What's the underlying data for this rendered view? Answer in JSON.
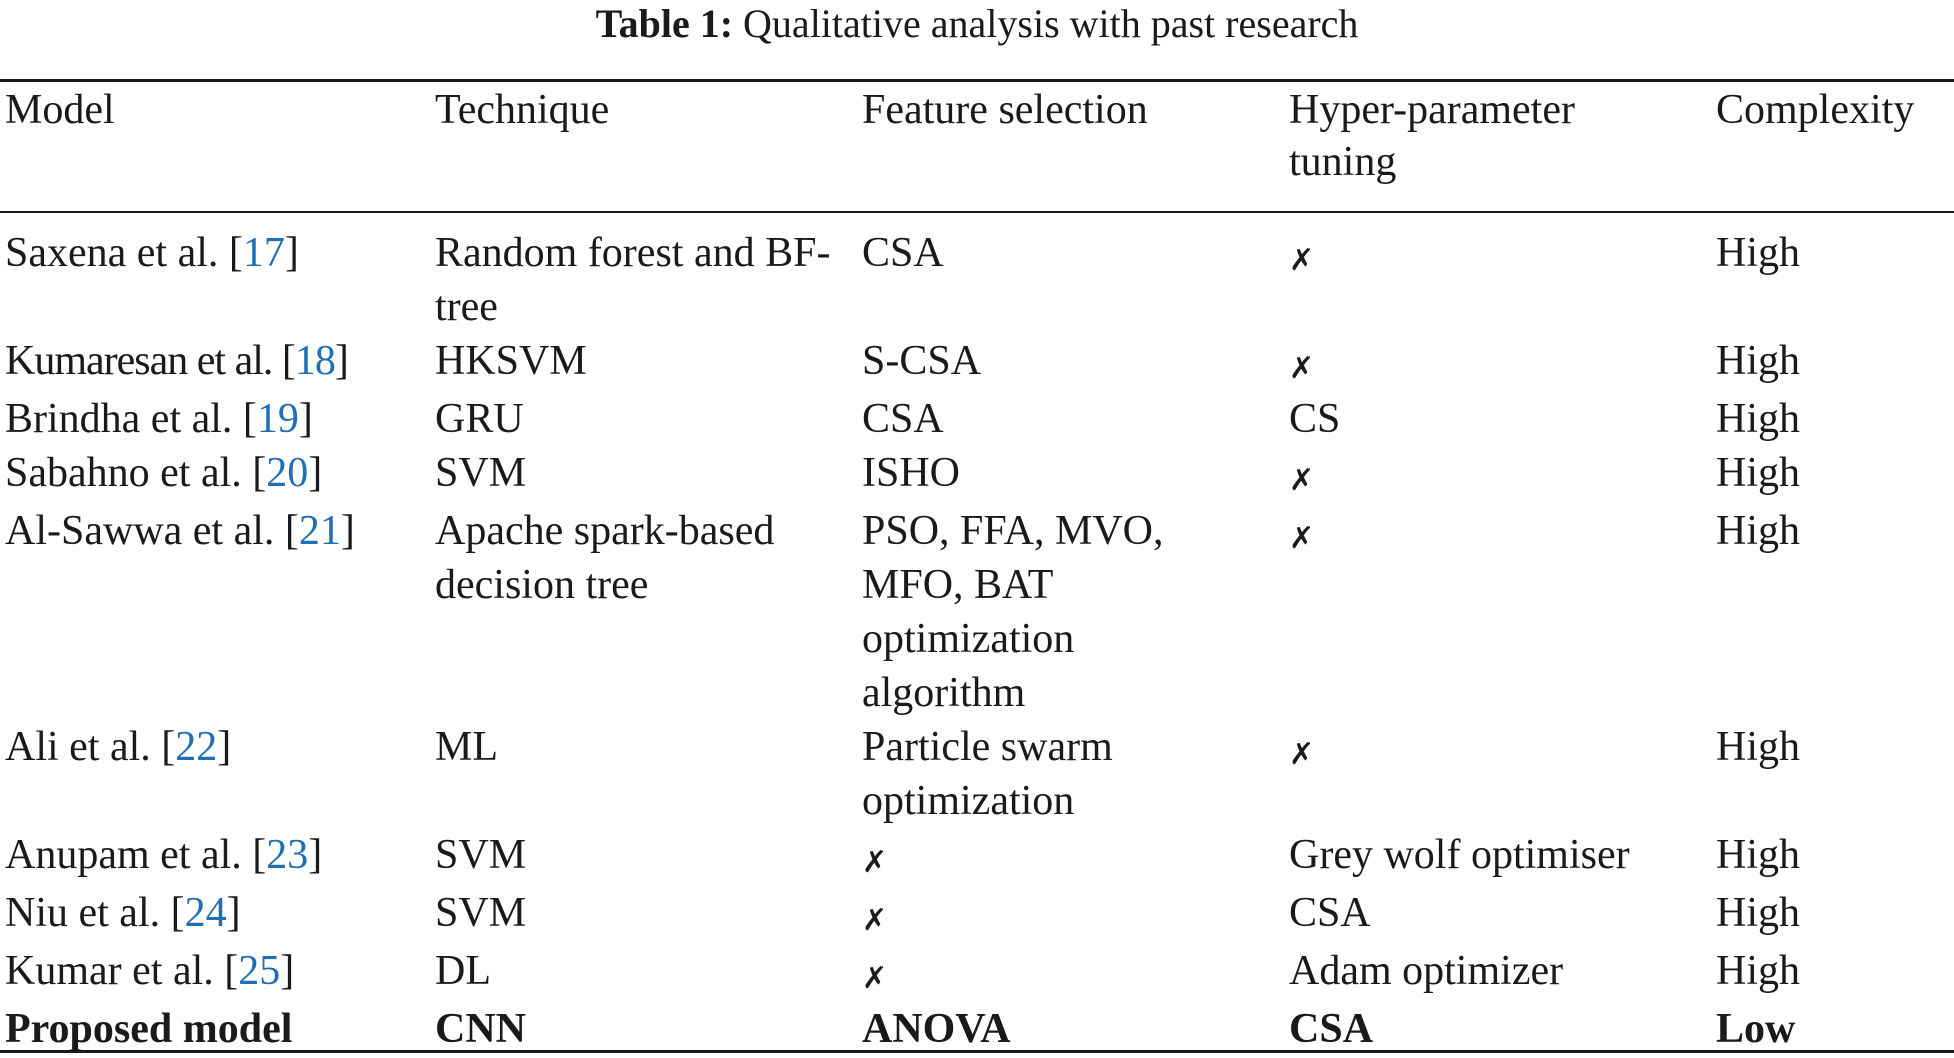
{
  "caption": {
    "label": "Table 1:",
    "text": "Qualitative analysis with past research"
  },
  "headers": [
    "Model",
    "Technique",
    "Feature selection",
    "Hyper-parameter tuning",
    "Complexity"
  ],
  "cross_symbol": "✗",
  "rows": [
    {
      "author": "Saxena et al. [",
      "ref": "17",
      "close": "]",
      "technique": "Random forest and BF-tree",
      "feature": "CSA",
      "tuning": "✗",
      "complexity": "High"
    },
    {
      "author": "Kumaresan et al. [",
      "ref": "18",
      "close": "]",
      "technique": "HKSVM",
      "feature": "S-CSA",
      "tuning": "✗",
      "complexity": "High"
    },
    {
      "author": "Brindha et al. [",
      "ref": "19",
      "close": "]",
      "technique": "GRU",
      "feature": "CSA",
      "tuning": "CS",
      "complexity": "High"
    },
    {
      "author": "Sabahno et al. [",
      "ref": "20",
      "close": "]",
      "technique": "SVM",
      "feature": "ISHO",
      "tuning": "✗",
      "complexity": "High"
    },
    {
      "author": "Al-Sawwa et al. [",
      "ref": "21",
      "close": "]",
      "technique": "Apache spark-based decision tree",
      "feature": "PSO, FFA, MVO, MFO, BAT optimization algorithm",
      "tuning": "✗",
      "complexity": "High"
    },
    {
      "author": "Ali et al. [",
      "ref": "22",
      "close": "]",
      "technique": "ML",
      "feature": "Particle swarm optimization",
      "tuning": "✗",
      "complexity": "High"
    },
    {
      "author": "Anupam et al. [",
      "ref": "23",
      "close": "]",
      "technique": "SVM",
      "feature": "✗",
      "tuning": "Grey wolf optimiser",
      "complexity": "High"
    },
    {
      "author": "Niu et al. [",
      "ref": "24",
      "close": "]",
      "technique": "SVM",
      "feature": "✗",
      "tuning": "CSA",
      "complexity": "High"
    },
    {
      "author": "Kumar et al. [",
      "ref": "25",
      "close": "]",
      "technique": "DL",
      "feature": "✗",
      "tuning": "Adam optimizer",
      "complexity": "High"
    },
    {
      "model": "Proposed model",
      "technique": "CNN",
      "feature": "ANOVA",
      "tuning": "CSA",
      "complexity": "Low"
    }
  ]
}
